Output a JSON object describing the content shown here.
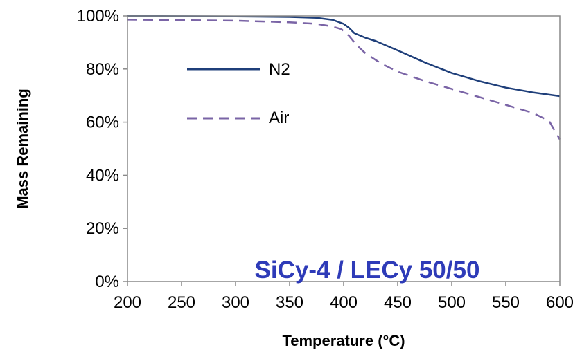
{
  "chart_data": {
    "type": "line",
    "title": "",
    "xlabel": "Temperature (°C)",
    "ylabel": "Mass Remaining",
    "xlim": [
      200,
      600
    ],
    "ylim": [
      0,
      100
    ],
    "x_ticks": [
      200,
      250,
      300,
      350,
      400,
      450,
      500,
      550,
      600
    ],
    "y_ticks": [
      "0%",
      "20%",
      "40%",
      "60%",
      "80%",
      "100%"
    ],
    "y_tick_values": [
      0,
      20,
      40,
      60,
      80,
      100
    ],
    "grid": false,
    "legend": "upper-left",
    "annotation": "SiCy-4 / LECy 50/50",
    "annotation_color": "#2e3bb8",
    "series": [
      {
        "name": "N2",
        "style": "solid",
        "color": "#1f3f7a",
        "x": [
          200,
          250,
          300,
          350,
          375,
          390,
          400,
          405,
          410,
          420,
          430,
          450,
          475,
          500,
          525,
          550,
          575,
          600
        ],
        "y": [
          100,
          99.9,
          99.8,
          99.6,
          99.3,
          98.5,
          97,
          95.5,
          93.5,
          91.8,
          90.5,
          87,
          82.5,
          78.5,
          75.5,
          73,
          71.2,
          69.8
        ]
      },
      {
        "name": "Air",
        "style": "dashed",
        "color": "#7a64a6",
        "x": [
          200,
          250,
          300,
          350,
          375,
          390,
          398,
          405,
          412,
          420,
          435,
          450,
          475,
          500,
          525,
          550,
          575,
          590,
          600
        ],
        "y": [
          98.6,
          98.4,
          98.2,
          97.6,
          97,
          96,
          95,
          92.5,
          89,
          86,
          82,
          79,
          75.5,
          72.5,
          69.5,
          66.5,
          63.5,
          60.5,
          53.5
        ]
      }
    ]
  }
}
